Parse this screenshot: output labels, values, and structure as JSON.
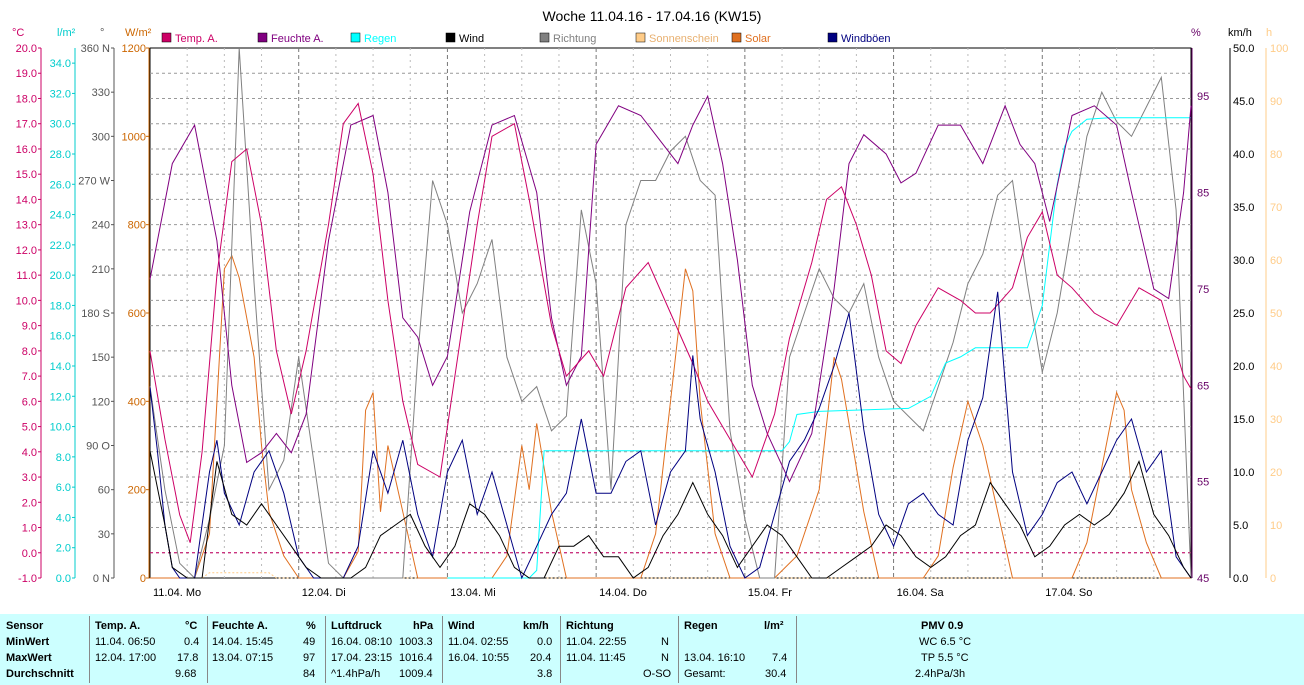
{
  "chart_data": {
    "type": "line",
    "title": "Woche 11.04.16 - 17.04.16 (KW15)",
    "x_days": [
      "11.04. Mo",
      "12.04. Di",
      "13.04. Mi",
      "14.04. Do",
      "15.04. Fr",
      "16.04. Sa",
      "17.04. So"
    ],
    "x_range_days": [
      0,
      7
    ],
    "grid": true,
    "legend": [
      "Temp. A.",
      "Feuchte A.",
      "Regen",
      "Wind",
      "Richtung",
      "Sonnenschein",
      "Solar",
      "Windböen"
    ],
    "axes": {
      "temp": {
        "unit": "°C",
        "range": [
          -1.0,
          20.0
        ],
        "color": "#cc0066",
        "ticks": [
          "20.0",
          "19.0",
          "18.0",
          "17.0",
          "16.0",
          "15.0",
          "14.0",
          "13.0",
          "12.0",
          "11.0",
          "10.0",
          "9.0",
          "8.0",
          "7.0",
          "6.0",
          "5.0",
          "4.0",
          "3.0",
          "2.0",
          "1.0",
          "0.0",
          "-1.0"
        ]
      },
      "rain": {
        "unit": "l/m²",
        "range": [
          0.0,
          35.0
        ],
        "color": "#00cccc",
        "ticks": [
          "34.0",
          "32.0",
          "30.0",
          "28.0",
          "26.0",
          "24.0",
          "22.0",
          "20.0",
          "18.0",
          "16.0",
          "14.0",
          "12.0",
          "10.0",
          "8.0",
          "6.0",
          "4.0",
          "2.0",
          "0.0"
        ]
      },
      "direction": {
        "unit": "°",
        "range": [
          0,
          360
        ],
        "color": "#555555",
        "ticks": [
          "360 N",
          "330",
          "300",
          "270 W",
          "240",
          "210",
          "180 S",
          "150",
          "120",
          "90 O",
          "60",
          "30",
          "0 N"
        ]
      },
      "solar": {
        "unit": "W/m²",
        "range": [
          0,
          1200
        ],
        "color": "#cc6600",
        "ticks": [
          "1200",
          "1000",
          "800",
          "600",
          "400",
          "200",
          "0"
        ]
      },
      "humidity": {
        "unit": "%",
        "range": [
          45,
          100
        ],
        "color": "#660066",
        "ticks": [
          "95",
          "85",
          "75",
          "65",
          "55",
          "45"
        ]
      },
      "wind": {
        "unit": "km/h",
        "range": [
          0.0,
          50.0
        ],
        "color": "#000000",
        "ticks": [
          "50.0",
          "45.0",
          "40.0",
          "35.0",
          "30.0",
          "25.0",
          "20.0",
          "15.0",
          "10.0",
          "5.0",
          "0.0"
        ]
      },
      "sunshine": {
        "unit": "h",
        "range": [
          0,
          100
        ],
        "color": "#ffcc88",
        "ticks": [
          "100",
          "90",
          "80",
          "70",
          "60",
          "50",
          "40",
          "30",
          "20",
          "10",
          "0"
        ]
      }
    },
    "series": [
      {
        "name": "Temp. A.",
        "axis": "temp",
        "color": "#cc0066",
        "x": [
          0,
          0.1,
          0.2,
          0.27,
          0.35,
          0.45,
          0.55,
          0.65,
          0.75,
          0.85,
          0.95,
          1.05,
          1.2,
          1.3,
          1.4,
          1.5,
          1.6,
          1.7,
          1.8,
          1.95,
          2.05,
          2.2,
          2.3,
          2.45,
          2.55,
          2.7,
          2.8,
          2.95,
          3.05,
          3.2,
          3.35,
          3.5,
          3.65,
          3.75,
          3.85,
          3.95,
          4.05,
          4.2,
          4.3,
          4.45,
          4.55,
          4.65,
          4.75,
          4.85,
          4.95,
          5.05,
          5.15,
          5.3,
          5.45,
          5.55,
          5.65,
          5.8,
          5.9,
          6.0,
          6.1,
          6.2,
          6.35,
          6.5,
          6.65,
          6.8,
          6.95,
          7.0
        ],
        "y": [
          8.0,
          4.5,
          1.5,
          0.4,
          4.0,
          11.0,
          15.5,
          16.0,
          13.0,
          8.0,
          5.5,
          8.0,
          13.0,
          17.0,
          17.8,
          15.0,
          10.0,
          6.0,
          3.5,
          3.0,
          7.0,
          13.0,
          16.5,
          17.0,
          14.0,
          9.0,
          7.0,
          8.0,
          7.0,
          10.5,
          11.5,
          9.5,
          7.5,
          6.0,
          5.0,
          4.0,
          3.0,
          5.5,
          8.5,
          11.5,
          14.0,
          14.5,
          13.0,
          11.0,
          8.0,
          7.5,
          9.0,
          10.5,
          10.0,
          9.5,
          9.5,
          10.5,
          12.5,
          13.5,
          11.0,
          10.5,
          9.5,
          9.0,
          10.5,
          10.0,
          7.0,
          6.5
        ]
      },
      {
        "name": "Feuchte A.",
        "axis": "humidity",
        "color": "#800080",
        "x": [
          0,
          0.15,
          0.3,
          0.45,
          0.55,
          0.65,
          0.75,
          0.85,
          0.95,
          1.05,
          1.2,
          1.35,
          1.5,
          1.6,
          1.7,
          1.8,
          1.9,
          2.0,
          2.15,
          2.3,
          2.45,
          2.6,
          2.7,
          2.8,
          2.9,
          3.0,
          3.15,
          3.3,
          3.45,
          3.55,
          3.65,
          3.75,
          3.85,
          3.95,
          4.05,
          4.15,
          4.3,
          4.45,
          4.6,
          4.7,
          4.8,
          4.95,
          5.05,
          5.15,
          5.3,
          5.45,
          5.6,
          5.75,
          5.85,
          5.95,
          6.05,
          6.2,
          6.35,
          6.5,
          6.6,
          6.75,
          6.85,
          6.95,
          7.0
        ],
        "y": [
          76,
          88,
          92,
          80,
          65,
          57,
          58,
          60,
          58,
          62,
          80,
          92,
          93,
          85,
          72,
          70,
          65,
          68,
          83,
          92,
          93,
          85,
          72,
          65,
          68,
          90,
          94,
          93,
          90,
          88,
          92,
          95,
          88,
          78,
          65,
          60,
          55,
          60,
          75,
          88,
          91,
          89,
          86,
          87,
          92,
          92,
          88,
          94,
          90,
          88,
          82,
          93,
          94,
          92,
          85,
          75,
          74,
          85,
          94
        ]
      },
      {
        "name": "Regen",
        "axis": "rain",
        "color": "#00ffff",
        "x": [
          2.0,
          2.55,
          2.6,
          2.65,
          4.1,
          4.25,
          4.3,
          4.35,
          4.5,
          5.1,
          5.25,
          5.35,
          5.45,
          5.55,
          5.7,
          5.9,
          6.0,
          6.05,
          6.1,
          6.15,
          6.2,
          6.3,
          6.45,
          6.6,
          7.0
        ],
        "y": [
          0.0,
          0.0,
          0.5,
          8.4,
          8.4,
          8.4,
          9.0,
          10.8,
          11.0,
          11.2,
          12.0,
          14.2,
          14.6,
          15.2,
          15.2,
          15.2,
          18.0,
          22.0,
          26.0,
          28.5,
          29.5,
          30.3,
          30.4,
          30.4,
          30.4
        ]
      },
      {
        "name": "Wind",
        "axis": "wind",
        "color": "#000000",
        "x": [
          0,
          0.1,
          0.15,
          0.25,
          0.35,
          0.45,
          0.55,
          0.65,
          0.75,
          0.85,
          0.95,
          1.05,
          1.15,
          1.25,
          1.35,
          1.45,
          1.55,
          1.65,
          1.75,
          1.85,
          1.95,
          2.05,
          2.15,
          2.25,
          2.35,
          2.45,
          2.55,
          2.65,
          2.75,
          2.85,
          2.95,
          3.05,
          3.15,
          3.25,
          3.35,
          3.45,
          3.55,
          3.65,
          3.75,
          3.85,
          3.95,
          4.05,
          4.15,
          4.25,
          4.35,
          4.45,
          4.55,
          4.65,
          4.75,
          4.85,
          4.95,
          5.05,
          5.15,
          5.25,
          5.35,
          5.45,
          5.55,
          5.65,
          5.75,
          5.85,
          5.95,
          6.05,
          6.15,
          6.25,
          6.35,
          6.45,
          6.55,
          6.65,
          6.75,
          6.85,
          6.95,
          7.0
        ],
        "y": [
          12,
          5,
          1,
          0,
          0,
          11,
          6,
          5,
          7,
          5,
          3,
          1,
          0,
          0,
          0,
          1,
          4,
          5,
          6,
          3,
          1,
          3,
          7,
          6,
          4,
          1,
          0,
          0,
          3,
          3,
          4,
          2,
          2,
          0,
          1,
          4,
          6,
          9,
          6,
          4,
          1,
          3,
          5,
          4,
          2,
          0,
          0,
          1,
          2,
          3,
          5,
          4,
          2,
          1,
          2,
          4,
          5,
          9,
          7,
          5,
          2,
          3,
          5,
          6,
          5,
          6,
          8,
          11,
          6,
          4,
          1,
          0
        ]
      },
      {
        "name": "Richtung",
        "axis": "direction",
        "color": "#808080",
        "x": [
          0,
          0.1,
          0.2,
          0.3,
          0.4,
          0.5,
          0.6,
          0.7,
          0.8,
          0.9,
          1.0,
          1.1,
          1.2,
          1.3,
          1.4,
          1.5,
          1.6,
          1.7,
          1.8,
          1.9,
          2.0,
          2.1,
          2.2,
          2.3,
          2.4,
          2.5,
          2.6,
          2.7,
          2.8,
          2.9,
          3.0,
          3.1,
          3.2,
          3.3,
          3.4,
          3.5,
          3.6,
          3.7,
          3.8,
          3.9,
          4.0,
          4.1,
          4.2,
          4.3,
          4.4,
          4.5,
          4.6,
          4.7,
          4.8,
          4.9,
          5.0,
          5.1,
          5.2,
          5.3,
          5.4,
          5.5,
          5.6,
          5.7,
          5.8,
          5.9,
          6.0,
          6.1,
          6.2,
          6.3,
          6.4,
          6.5,
          6.6,
          6.7,
          6.8,
          6.9,
          7.0
        ],
        "y": [
          130,
          60,
          10,
          0,
          40,
          90,
          360,
          200,
          60,
          80,
          150,
          80,
          10,
          0,
          0,
          0,
          0,
          0,
          150,
          270,
          240,
          180,
          200,
          230,
          150,
          120,
          130,
          100,
          110,
          250,
          200,
          60,
          240,
          270,
          270,
          290,
          300,
          270,
          260,
          100,
          40,
          0,
          0,
          150,
          180,
          210,
          190,
          180,
          200,
          150,
          120,
          110,
          100,
          130,
          160,
          200,
          220,
          260,
          270,
          200,
          140,
          180,
          240,
          300,
          330,
          310,
          300,
          320,
          340,
          250,
          0
        ]
      },
      {
        "name": "Sonnenschein",
        "axis": "sunshine",
        "color": "#ffcc88",
        "x": [
          0,
          0.35,
          0.4,
          0.8,
          0.85,
          2.0,
          7.0
        ],
        "y": [
          0,
          0,
          1,
          1,
          0,
          0,
          0
        ]
      },
      {
        "name": "Solar",
        "axis": "solar",
        "color": "#e07020",
        "x": [
          0,
          0.3,
          0.4,
          0.5,
          0.55,
          0.6,
          0.7,
          0.75,
          0.8,
          0.9,
          1.0,
          1.3,
          1.4,
          1.45,
          1.5,
          1.55,
          1.6,
          1.7,
          1.8,
          2.3,
          2.4,
          2.5,
          2.55,
          2.6,
          2.7,
          2.8,
          3.3,
          3.4,
          3.5,
          3.6,
          3.65,
          3.7,
          3.8,
          3.9,
          4.2,
          4.35,
          4.5,
          4.6,
          4.65,
          4.7,
          4.8,
          4.9,
          5.2,
          5.3,
          5.4,
          5.5,
          5.6,
          5.7,
          5.8,
          6.2,
          6.3,
          6.4,
          6.5,
          6.55,
          6.6,
          6.7,
          6.8,
          7.0
        ],
        "y": [
          0,
          0,
          100,
          700,
          730,
          680,
          500,
          300,
          150,
          50,
          0,
          0,
          60,
          380,
          420,
          150,
          300,
          150,
          0,
          0,
          50,
          300,
          200,
          350,
          150,
          0,
          0,
          100,
          400,
          700,
          650,
          400,
          100,
          0,
          0,
          50,
          200,
          500,
          450,
          350,
          150,
          0,
          0,
          50,
          250,
          400,
          300,
          150,
          0,
          0,
          80,
          250,
          420,
          380,
          200,
          80,
          0,
          0
        ]
      },
      {
        "name": "Windböen",
        "axis": "wind",
        "color": "#000080",
        "x": [
          0,
          0.05,
          0.1,
          0.15,
          0.2,
          0.3,
          0.4,
          0.45,
          0.5,
          0.6,
          0.7,
          0.8,
          0.9,
          1.0,
          1.1,
          1.2,
          1.3,
          1.4,
          1.5,
          1.6,
          1.7,
          1.8,
          1.9,
          2.0,
          2.1,
          2.2,
          2.3,
          2.4,
          2.5,
          2.6,
          2.7,
          2.8,
          2.9,
          3.0,
          3.1,
          3.2,
          3.3,
          3.4,
          3.5,
          3.6,
          3.65,
          3.7,
          3.8,
          3.9,
          4.0,
          4.1,
          4.2,
          4.3,
          4.4,
          4.5,
          4.6,
          4.7,
          4.8,
          4.9,
          5.0,
          5.1,
          5.2,
          5.3,
          5.4,
          5.5,
          5.6,
          5.7,
          5.8,
          5.9,
          6.0,
          6.1,
          6.2,
          6.3,
          6.4,
          6.5,
          6.6,
          6.7,
          6.8,
          6.9,
          7.0
        ],
        "y": [
          18,
          12,
          5,
          1,
          0,
          0,
          10,
          13,
          8,
          5,
          10,
          12,
          8,
          2,
          0,
          0,
          0,
          3,
          12,
          8,
          13,
          6,
          2,
          10,
          13,
          6,
          10,
          5,
          0,
          3,
          6,
          8,
          15,
          8,
          8,
          11,
          12,
          5,
          10,
          12,
          21,
          15,
          10,
          3,
          0,
          1,
          6,
          11,
          13,
          16,
          20,
          25,
          14,
          6,
          3,
          7,
          8,
          6,
          5,
          13,
          17,
          27,
          10,
          4,
          6,
          9,
          10,
          7,
          10,
          13,
          15,
          10,
          12,
          2,
          0
        ]
      }
    ]
  },
  "stats": {
    "header": {
      "sensor": "Sensor",
      "temp": "Temp. A.",
      "temp_unit": "°C",
      "hum": "Feuchte A.",
      "hum_unit": "%",
      "press": "Luftdruck",
      "press_unit": "hPa",
      "wind": "Wind",
      "wind_unit": "km/h",
      "dir": "Richtung",
      "rain": "Regen",
      "rain_unit": "l/m²",
      "pmv": "PMV 0.9"
    },
    "min": {
      "label": "MinWert",
      "temp_time": "11.04.  06:50",
      "temp_val": "0.4",
      "hum_time": "14.04.  15:45",
      "hum_val": "49",
      "press_time": "16.04.  08:10",
      "press_val": "1003.3",
      "wind_time": "11.04.  02:55",
      "wind_val": "0.0",
      "dir_time": "11.04.  22:55",
      "dir_val": "N",
      "extra": "WC 6.5 °C"
    },
    "max": {
      "label": "MaxWert",
      "temp_time": "12.04.  17:00",
      "temp_val": "17.8",
      "hum_time": "13.04.  07:15",
      "hum_val": "97",
      "press_time": "17.04.  23:15",
      "press_val": "1016.4",
      "wind_time": "16.04.  10:55",
      "wind_val": "20.4",
      "dir_time": "11.04.  11:45",
      "dir_val": "N",
      "rain_time": "13.04.  16:10",
      "rain_val": "7.4",
      "extra": "TP 5.5 °C"
    },
    "avg": {
      "label": "Durchschnitt",
      "temp_val": "9.68",
      "hum_val": "84",
      "press_trend": "^1.4hPa/h",
      "press_val": "1009.4",
      "wind_val": "3.8",
      "dir_val": "O-SO",
      "rain_label": "Gesamt:",
      "rain_val": "30.4",
      "extra": "2.4hPa/3h"
    }
  }
}
